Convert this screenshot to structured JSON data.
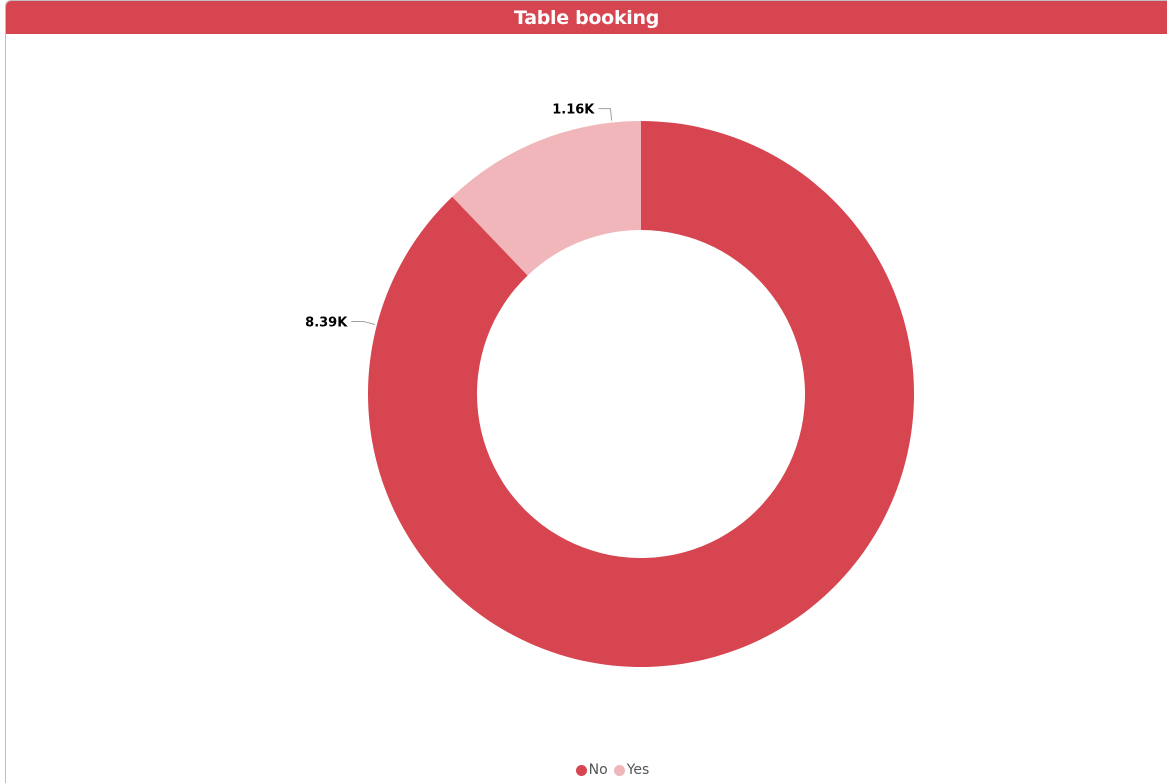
{
  "header": {
    "title": "Table booking"
  },
  "colors": {
    "accent": "#d64550",
    "no": "#d64550",
    "yes": "#f0b6b9",
    "leader": "#a0a0a0"
  },
  "chart_data": {
    "type": "pie",
    "donut": true,
    "categories": [
      "No",
      "Yes"
    ],
    "values": [
      8390,
      1160
    ],
    "data_labels": [
      "8.39K",
      "1.16K"
    ],
    "title": "Table booking",
    "legend": {
      "placement": "bottom-center",
      "entries": [
        "No",
        "Yes"
      ]
    }
  }
}
